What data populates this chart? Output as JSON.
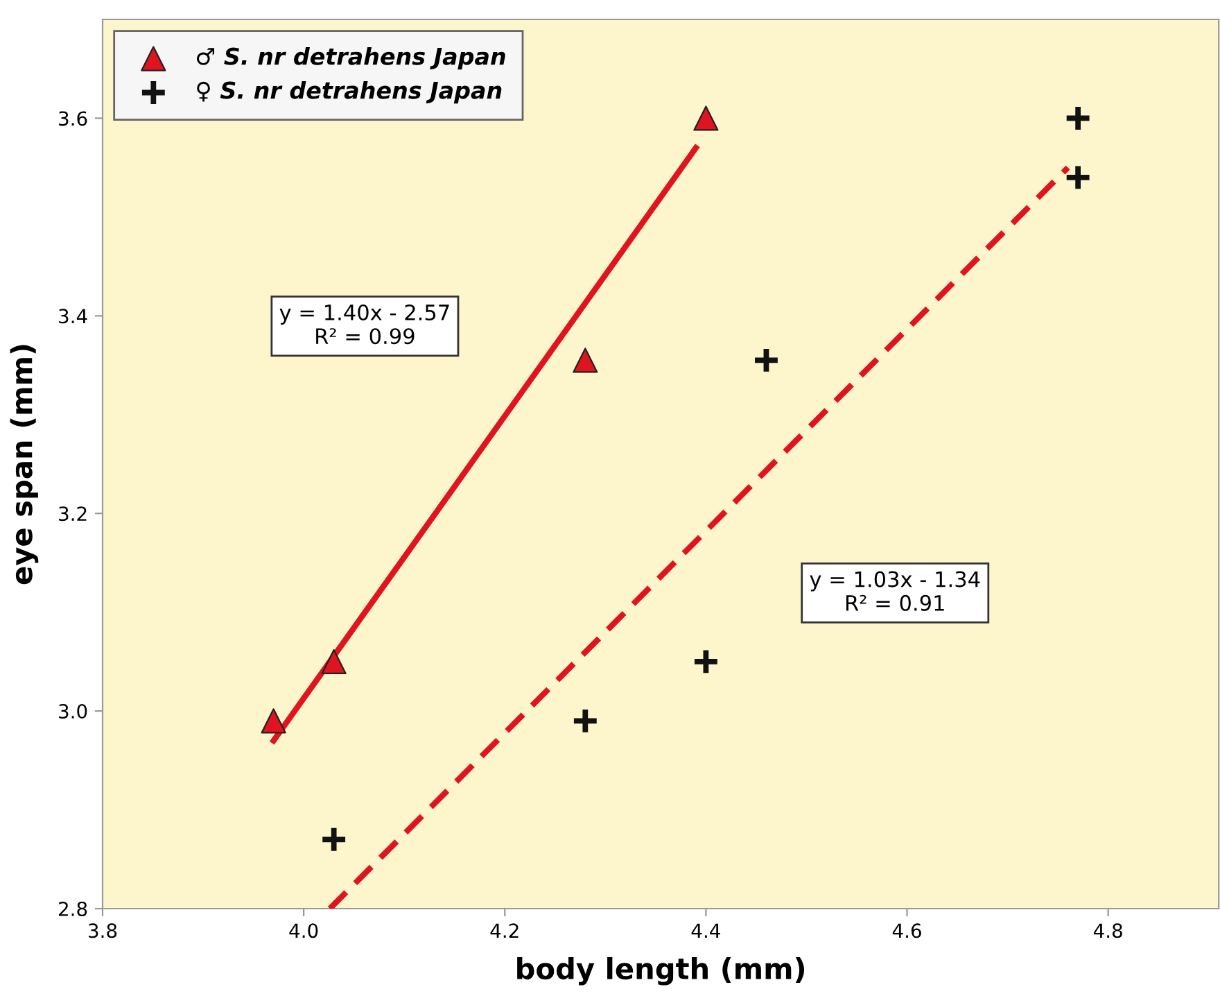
{
  "chart_data": {
    "type": "scatter",
    "xlabel": "body length (mm)",
    "ylabel": "eye span (mm)",
    "xlim": [
      3.8,
      4.91
    ],
    "ylim": [
      2.8,
      3.7
    ],
    "xticks": [
      3.8,
      {
        "value": 4.0,
        "label": "4.0"
      },
      4.2,
      4.4,
      4.6,
      4.8
    ],
    "yticks": [
      2.8,
      {
        "value": 3.0,
        "label": "3.0"
      },
      3.2,
      3.4,
      3.6
    ],
    "legend": "top left",
    "grid": false,
    "series": [
      {
        "name": "♂ S. nr detrahens Japan",
        "marker": "triangle",
        "color": "#e0141e",
        "x": [
          3.97,
          4.03,
          4.28,
          4.4
        ],
        "values": [
          2.99,
          3.05,
          3.355,
          3.6
        ]
      },
      {
        "name": "♀ S. nr detrahens Japan",
        "marker": "cross",
        "color": "#111111",
        "x": [
          4.03,
          4.28,
          4.4,
          4.46,
          4.77,
          4.77
        ],
        "values": [
          2.87,
          2.99,
          3.05,
          3.355,
          3.6,
          3.54
        ]
      },
      {
        "type": "line",
        "line_style": "solid",
        "color": "#e0141e",
        "x": [
          3.97,
          4.39
        ],
        "values": [
          2.97,
          3.57
        ]
      },
      {
        "type": "line",
        "line_style": "dashed",
        "color": "#e0141e",
        "x": [
          4.026,
          4.76
        ],
        "values": [
          2.8,
          3.55
        ]
      }
    ],
    "annotations": [
      "y = 1.40x - 2.57\nR² = 0.99",
      "y = 1.03x - 1.34\nR² = 0.91"
    ]
  }
}
